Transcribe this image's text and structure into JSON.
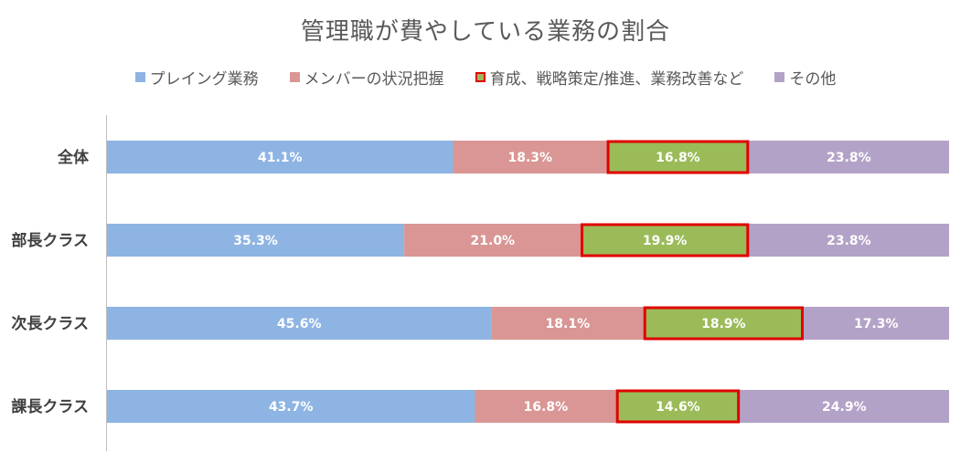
{
  "chart_data": {
    "type": "bar",
    "orientation": "horizontal",
    "stacked": "percent",
    "title": "管理職が費やしている業務の割合",
    "categories": [
      "全体",
      "部長クラス",
      "次長クラス",
      "課長クラス"
    ],
    "series": [
      {
        "name": "プレイング業務",
        "color": "#8EB4E3",
        "values": [
          41.1,
          35.3,
          45.6,
          43.7
        ],
        "labels": [
          "41.1%",
          "35.3%",
          "45.6%",
          "43.7%"
        ]
      },
      {
        "name": "メンバーの状況把握",
        "color": "#D99694",
        "values": [
          18.3,
          21.0,
          18.1,
          16.8
        ],
        "labels": [
          "18.3%",
          "21.0%",
          "18.1%",
          "16.8%"
        ]
      },
      {
        "name": "育成、戦略策定/推進、業務改善など",
        "color": "#9BBB59",
        "highlight_border": "#E00000",
        "values": [
          16.8,
          19.9,
          18.9,
          14.6
        ],
        "labels": [
          "16.8%",
          "19.9%",
          "18.9%",
          "14.6%"
        ]
      },
      {
        "name": "その他",
        "color": "#B3A2C7",
        "values": [
          23.8,
          23.8,
          17.3,
          24.9
        ],
        "labels": [
          "23.8%",
          "23.8%",
          "17.3%",
          "24.9%"
        ]
      }
    ],
    "legend_position": "top",
    "grid": false
  }
}
